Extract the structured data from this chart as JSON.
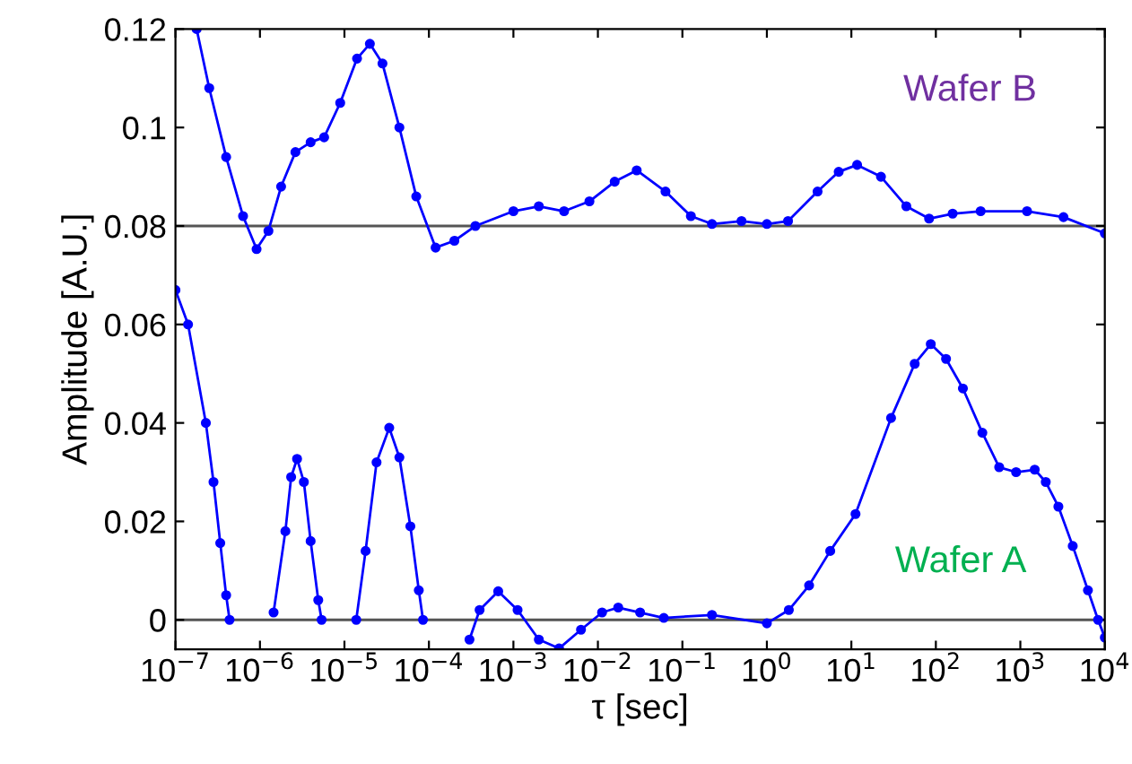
{
  "chart_data": {
    "type": "line",
    "xlabel": "τ [sec]",
    "ylabel": "Amplitude [A.U.]",
    "log": "x",
    "marker": "circle",
    "line_style": "solid",
    "grid": false,
    "legend": false,
    "xlim": [
      1e-07,
      10000
    ],
    "ylim": [
      -0.006,
      0.12
    ],
    "xticks": [
      {
        "value": 1e-07,
        "label": "10$^{−7}$"
      },
      {
        "value": 1e-06,
        "label": "10$^{−6}$"
      },
      {
        "value": 1e-05,
        "label": "10$^{−5}$"
      },
      {
        "value": 0.0001,
        "label": "10$^{−4}$"
      },
      {
        "value": 0.001,
        "label": "10$^{−3}$"
      },
      {
        "value": 0.01,
        "label": "10$^{−2}$"
      },
      {
        "value": 0.1,
        "label": "10$^{−1}$"
      },
      {
        "value": 1,
        "label": "10$^{0}$"
      },
      {
        "value": 10,
        "label": "10$^{1}$"
      },
      {
        "value": 100,
        "label": "10$^{2}$"
      },
      {
        "value": 1000,
        "label": "10$^{3}$"
      },
      {
        "value": 10000,
        "label": "10$^{4}$"
      }
    ],
    "yticks": [
      0,
      0.02,
      0.04,
      0.06,
      0.08,
      0.1,
      0.12
    ],
    "ref_lines": [
      {
        "axis": "y",
        "value": 0,
        "color": "#555555"
      },
      {
        "axis": "y",
        "value": 0.08,
        "color": "#555555"
      }
    ],
    "annotations": [
      "Wafer B",
      "Wafer A"
    ],
    "series": [
      {
        "color": "#0000ff",
        "x": [
          1e-07,
          1.41e-07,
          2.29e-07,
          2.82e-07,
          3.39e-07,
          3.98e-07,
          4.37e-07,
          7.94e-07,
          1.45e-06,
          2e-06,
          2.34e-06,
          2.75e-06,
          3.31e-06,
          3.98e-06,
          4.9e-06,
          5.37e-06,
          7.94e-06,
          1.38e-05,
          1.78e-05,
          2.4e-05,
          3.39e-05,
          4.47e-05,
          6.03e-05,
          7.59e-05,
          8.51e-05,
          0.000158,
          0.000302,
          0.000398,
          0.000661,
          0.00112,
          0.002,
          0.00347,
          0.00631,
          0.0112,
          0.0174,
          0.0316,
          0.0603,
          0.224,
          1,
          1.82,
          3.16,
          5.62,
          11.2,
          29.5,
          56.2,
          87.1,
          132,
          209,
          355,
          562,
          891,
          1480,
          2000,
          2820,
          4170,
          6310,
          8320,
          10000
        ],
        "values": [
          0.067,
          0.06,
          0.04,
          0.028,
          0.0156,
          0.005,
          0.0,
          null,
          0.0015,
          0.018,
          0.029,
          0.0327,
          0.028,
          0.016,
          0.004,
          0.0,
          null,
          0.0,
          0.014,
          0.032,
          0.039,
          0.033,
          0.019,
          0.006,
          0.0,
          null,
          -0.004,
          0.002,
          0.0058,
          0.002,
          -0.004,
          -0.0058,
          -0.002,
          0.0015,
          0.0025,
          0.0015,
          0.0004,
          0.001,
          -0.0007,
          0.002,
          0.007,
          0.014,
          0.0215,
          0.041,
          0.052,
          0.056,
          0.053,
          0.047,
          0.038,
          0.031,
          0.03,
          0.0305,
          0.028,
          0.023,
          0.015,
          0.006,
          0.0,
          -0.0036
        ]
      },
      {
        "color": "#0000ff",
        "x": [
          1.78e-07,
          2.51e-07,
          3.98e-07,
          6.31e-07,
          9.12e-07,
          1.26e-06,
          1.78e-06,
          2.63e-06,
          3.98e-06,
          5.75e-06,
          8.91e-06,
          1.41e-05,
          2e-05,
          2.82e-05,
          4.47e-05,
          7.08e-05,
          0.00012,
          0.0002,
          0.000355,
          0.001,
          0.002,
          0.00398,
          0.00794,
          0.0158,
          0.0288,
          0.0631,
          0.126,
          0.224,
          0.501,
          1,
          1.78,
          3.98,
          7.08,
          11.7,
          22.4,
          44.7,
          83.2,
          158,
          339,
          1200,
          3240,
          10000
        ],
        "values": [
          0.12,
          0.108,
          0.094,
          0.082,
          0.0753,
          0.079,
          0.088,
          0.095,
          0.097,
          0.098,
          0.105,
          0.114,
          0.117,
          0.113,
          0.1,
          0.086,
          0.0756,
          0.077,
          0.08,
          0.083,
          0.084,
          0.083,
          0.085,
          0.089,
          0.0913,
          0.087,
          0.082,
          0.0804,
          0.081,
          0.0804,
          0.081,
          0.087,
          0.091,
          0.0924,
          0.09,
          0.084,
          0.0815,
          0.0825,
          0.083,
          0.083,
          0.0818,
          0.0785
        ]
      }
    ]
  }
}
